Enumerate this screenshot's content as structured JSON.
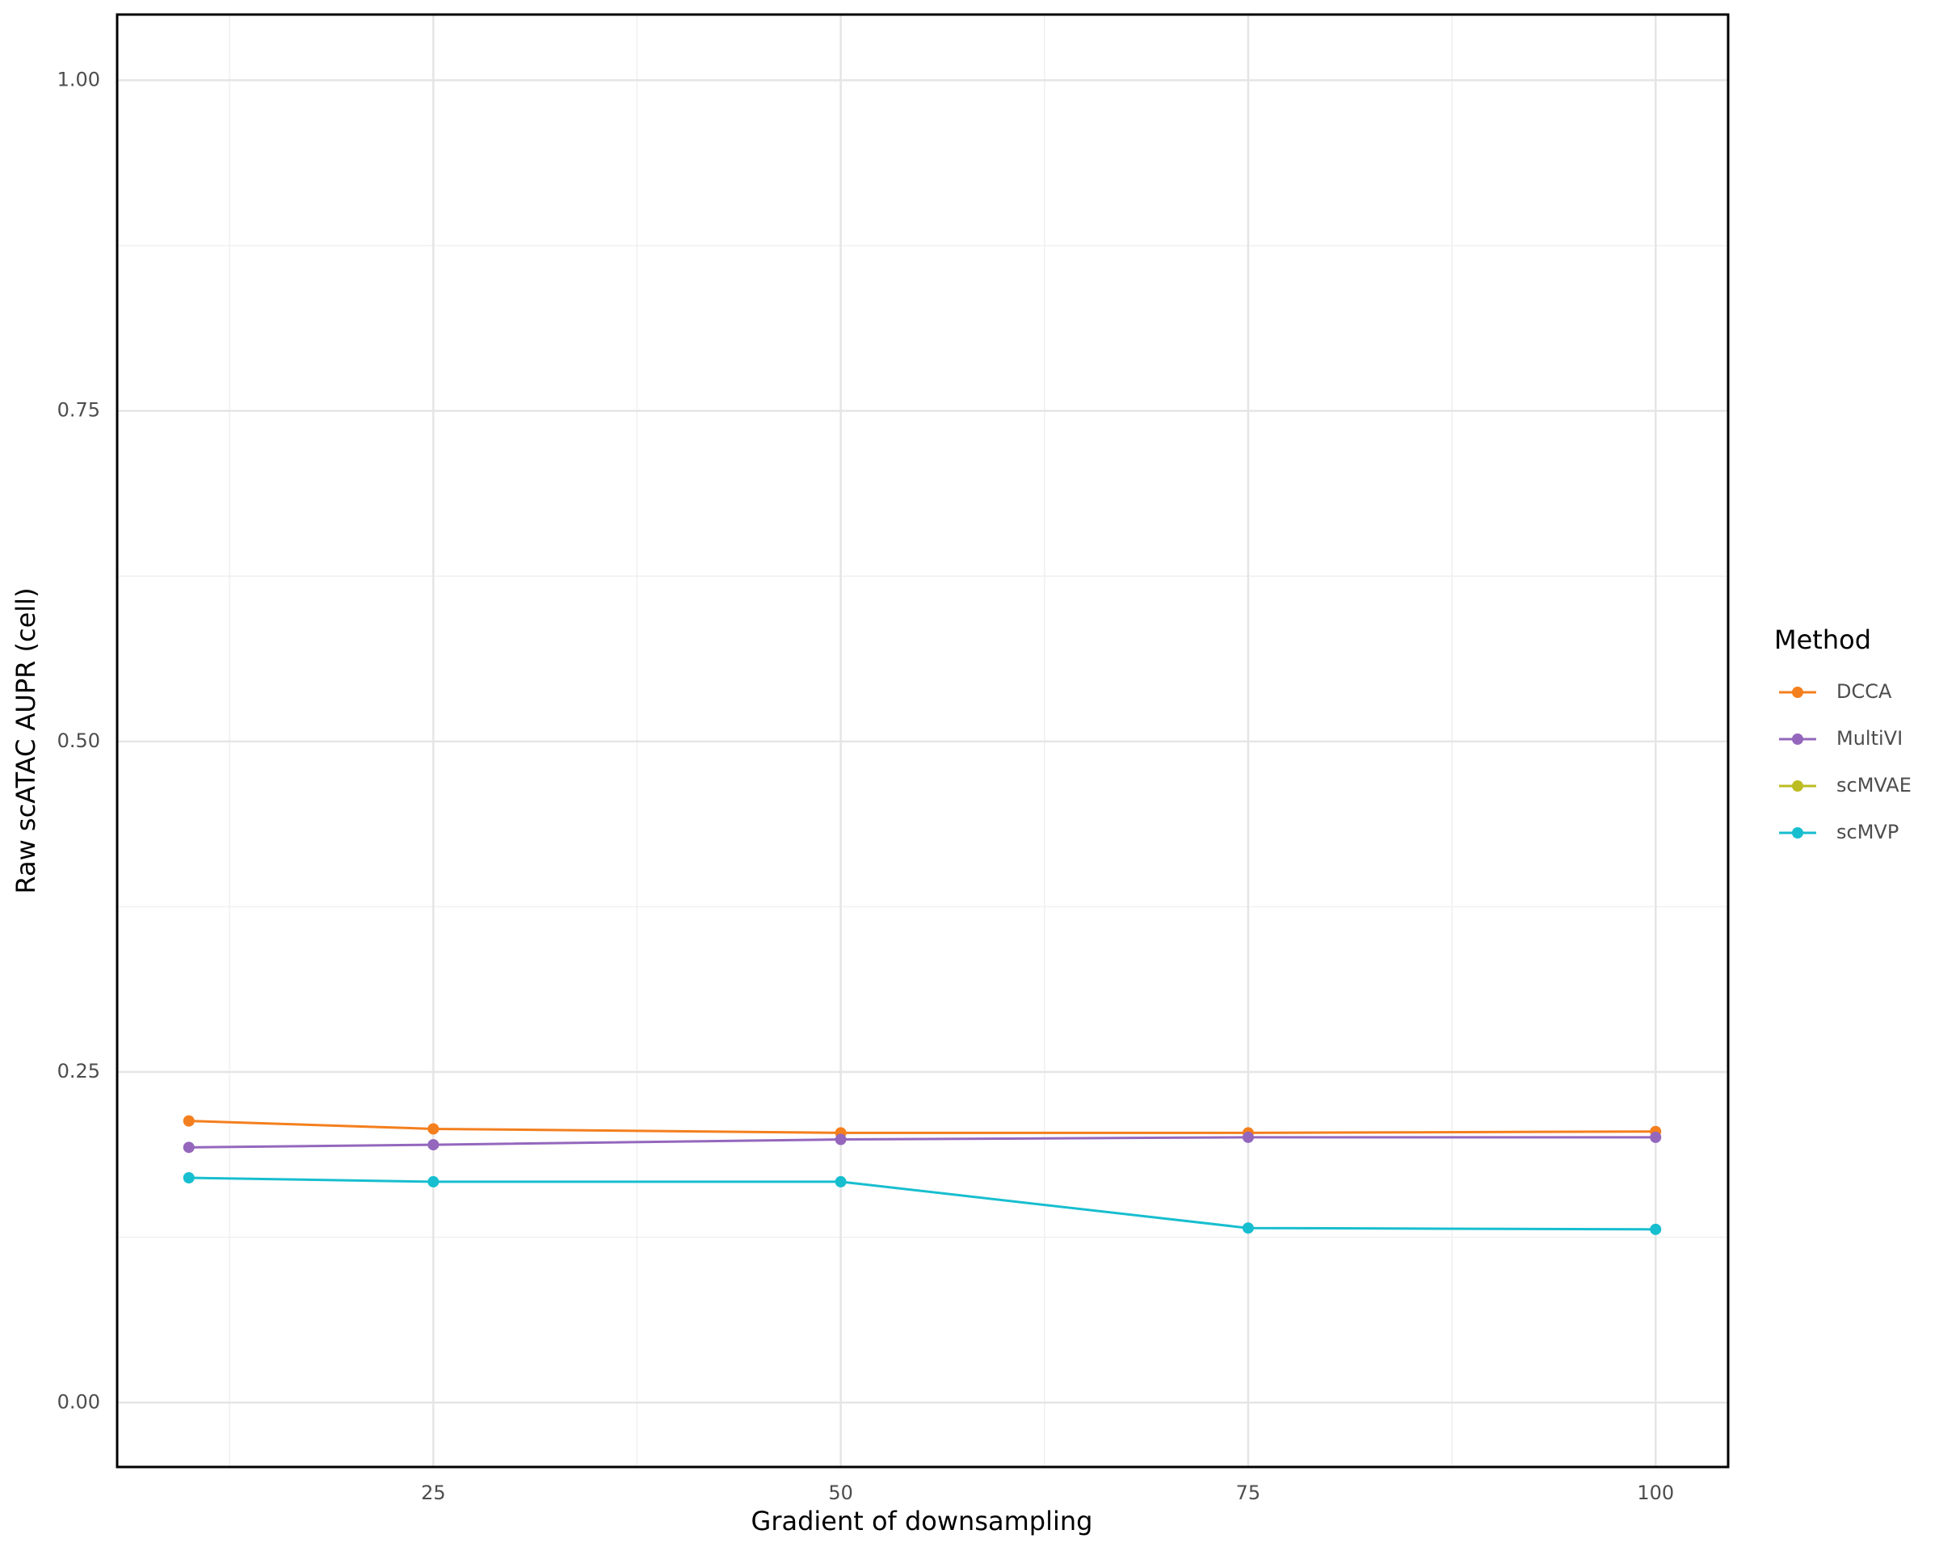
{
  "chart_data": {
    "type": "line",
    "x_label": "Gradient of downsampling",
    "y_label": "Raw scATAC AUPR (cell)",
    "x": [
      10,
      25,
      50,
      75,
      100
    ],
    "series": [
      {
        "name": "DCCA",
        "color": "#f47f1e",
        "values": [
          0.213,
          0.207,
          0.204,
          0.204,
          0.205
        ]
      },
      {
        "name": "MultiVI",
        "color": "#9467bd",
        "values": [
          0.193,
          0.195,
          0.199,
          0.2006,
          0.2006
        ]
      },
      {
        "name": "scMVAE",
        "color": "#bcbd22",
        "values": [
          null,
          null,
          null,
          null,
          null
        ]
      },
      {
        "name": "scMVP",
        "color": "#17becf",
        "values": [
          0.17,
          0.167,
          0.167,
          0.132,
          0.131
        ]
      }
    ],
    "xlim": [
      5.6,
      104.45
    ],
    "ylim": [
      -0.0487,
      1.0497
    ],
    "xticks": [
      25,
      50,
      75,
      100
    ],
    "yticks": [
      {
        "value": 0,
        "label": "0.00"
      },
      {
        "value": 0.25,
        "label": "0.25"
      },
      {
        "value": 0.5,
        "label": "0.50"
      },
      {
        "value": 0.75,
        "label": "0.75"
      },
      {
        "value": 1,
        "label": "1.00"
      }
    ],
    "grid": true,
    "legend_title": "Method",
    "legend_position": "right"
  }
}
